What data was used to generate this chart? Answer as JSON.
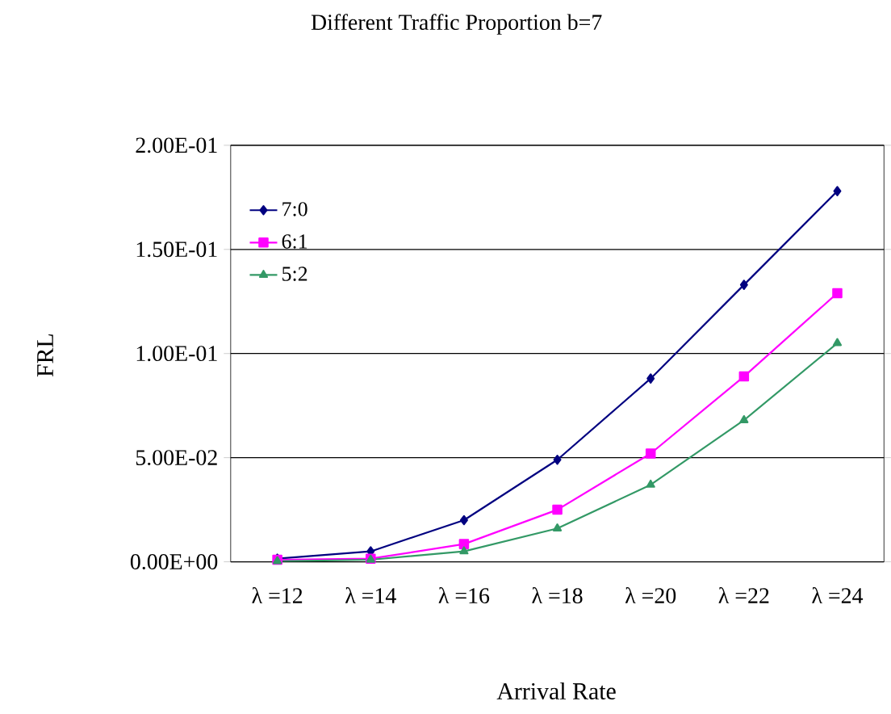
{
  "chart_data": {
    "type": "line",
    "title": "Different Traffic Proportion   b=7",
    "xlabel": "Arrival Rate",
    "ylabel": "FRL",
    "categories": [
      "λ =12",
      "λ =14",
      "λ =16",
      "λ =18",
      "λ =20",
      "λ =22",
      "λ =24"
    ],
    "series": [
      {
        "name": "7:0",
        "color": "#000080",
        "marker": "diamond",
        "values": [
          0.0015,
          0.005,
          0.02,
          0.049,
          0.088,
          0.133,
          0.178
        ]
      },
      {
        "name": "6:1",
        "color": "#ff00ff",
        "marker": "square",
        "values": [
          0.001,
          0.0015,
          0.0085,
          0.025,
          0.052,
          0.089,
          0.129
        ]
      },
      {
        "name": "5:2",
        "color": "#339966",
        "marker": "triangle",
        "values": [
          0.0003,
          0.001,
          0.005,
          0.016,
          0.037,
          0.068,
          0.105
        ]
      }
    ],
    "ylim": [
      0,
      0.2
    ],
    "yticks": [
      {
        "value": 0,
        "label": "0.00E+00"
      },
      {
        "value": 0.05,
        "label": "5.00E-02"
      },
      {
        "value": 0.1,
        "label": "1.00E-01"
      },
      {
        "value": 0.15,
        "label": "1.50E-01"
      },
      {
        "value": 0.2,
        "label": "2.00E-01"
      }
    ],
    "grid": "y",
    "legend": "top left",
    "line_style": "solid"
  }
}
